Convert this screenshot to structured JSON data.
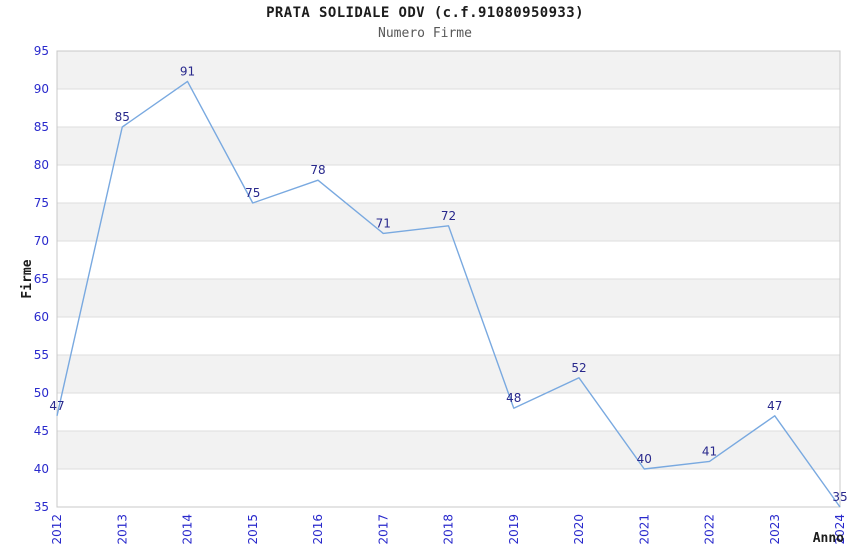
{
  "header": {
    "title": "PRATA SOLIDALE ODV (c.f.91080950933)",
    "subtitle": "Numero Firme"
  },
  "chart_data": {
    "type": "line",
    "title": "PRATA SOLIDALE ODV (c.f.91080950933)",
    "subtitle": "Numero Firme",
    "xlabel": "Anno",
    "ylabel": "Firme",
    "categories": [
      "2012",
      "2013",
      "2014",
      "2015",
      "2016",
      "2017",
      "2018",
      "2019",
      "2020",
      "2021",
      "2022",
      "2023",
      "2024"
    ],
    "series": [
      {
        "name": "Numero Firme",
        "values": [
          47,
          85,
          91,
          75,
          78,
          71,
          72,
          48,
          52,
          40,
          41,
          47,
          35
        ]
      }
    ],
    "ylim": [
      35,
      95
    ],
    "ytick_step": 5,
    "yticks": [
      35,
      40,
      45,
      50,
      55,
      60,
      65,
      70,
      75,
      80,
      85,
      90,
      95
    ],
    "grid": true,
    "legend_position": "none",
    "band_pattern": "alternating-from-top",
    "colors": {
      "line": "#79a9e0",
      "tick_label": "#2929cc",
      "data_label": "#28288c",
      "band": "#f2f2f2",
      "grid": "#dedede",
      "border": "#c8c8c8",
      "title": "#1c1c1c",
      "subtitle": "#585858",
      "axis_title": "#1c1c1c",
      "background": "#ffffff"
    }
  }
}
